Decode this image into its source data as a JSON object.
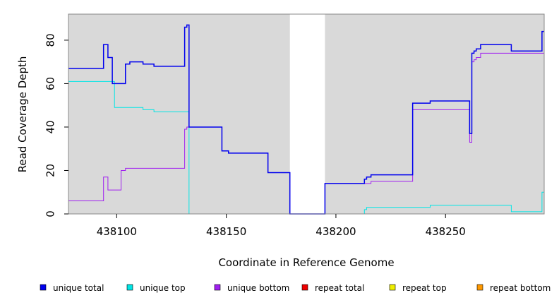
{
  "chart_data": {
    "type": "line",
    "title": "",
    "xlabel": "Coordinate in Reference Genome",
    "ylabel": "Read Coverage Depth",
    "xlim": [
      438078,
      438295
    ],
    "ylim": [
      0,
      92
    ],
    "x_ticks": [
      438100,
      438150,
      438200,
      438250
    ],
    "y_ticks": [
      0,
      20,
      40,
      60,
      80
    ],
    "grid": false,
    "legend_position": "bottom",
    "shaded_regions": [
      {
        "x_start": 438078,
        "x_end": 438179,
        "color": "#d9d9d9"
      },
      {
        "x_start": 438195,
        "x_end": 438295,
        "color": "#d9d9d9"
      }
    ],
    "series": [
      {
        "name": "unique total",
        "color": "#0000ee",
        "style": "step",
        "width": 1.5,
        "x": [
          438078,
          438094,
          438096,
          438098,
          438104,
          438106,
          438112,
          438117,
          438131,
          438132,
          438133,
          438148,
          438151,
          438169,
          438179,
          438195,
          438213,
          438214,
          438216,
          438235,
          438243,
          438261,
          438262,
          438263,
          438264,
          438266,
          438280,
          438294,
          438295
        ],
        "y": [
          67,
          78,
          72,
          60,
          69,
          70,
          69,
          68,
          86,
          87,
          40,
          29,
          28,
          19,
          0,
          14,
          16,
          17,
          18,
          51,
          52,
          37,
          74,
          75,
          76,
          78,
          75,
          84,
          84
        ]
      },
      {
        "name": "unique top",
        "color": "#00e5e5",
        "style": "step",
        "width": 1,
        "x": [
          438078,
          438099,
          438112,
          438117,
          438133,
          438213,
          438214,
          438243,
          438280,
          438294,
          438295
        ],
        "y": [
          61,
          49,
          48,
          47,
          0,
          2,
          3,
          4,
          1,
          10,
          10
        ]
      },
      {
        "name": "unique bottom",
        "color": "#a020f0",
        "style": "step",
        "width": 1,
        "x": [
          438078,
          438094,
          438096,
          438102,
          438104,
          438131,
          438132,
          438133,
          438148,
          438151,
          438169,
          438179,
          438195,
          438213,
          438216,
          438235,
          438261,
          438262,
          438263,
          438264,
          438266,
          438295
        ],
        "y": [
          6,
          17,
          11,
          20,
          21,
          39,
          40,
          40,
          29,
          28,
          19,
          0,
          14,
          14,
          15,
          48,
          33,
          70,
          71,
          72,
          74,
          74
        ]
      },
      {
        "name": "repeat total",
        "color": "#ee0000",
        "style": "step",
        "width": 1,
        "x": [
          438078,
          438295
        ],
        "y": [
          0,
          0
        ]
      },
      {
        "name": "repeat top",
        "color": "#eeee00",
        "style": "step",
        "width": 1,
        "x": [
          438078,
          438295
        ],
        "y": [
          0,
          0
        ]
      },
      {
        "name": "repeat bottom",
        "color": "#ff9900",
        "style": "step",
        "width": 1,
        "x": [
          438078,
          438295
        ],
        "y": [
          0,
          0
        ]
      }
    ]
  }
}
